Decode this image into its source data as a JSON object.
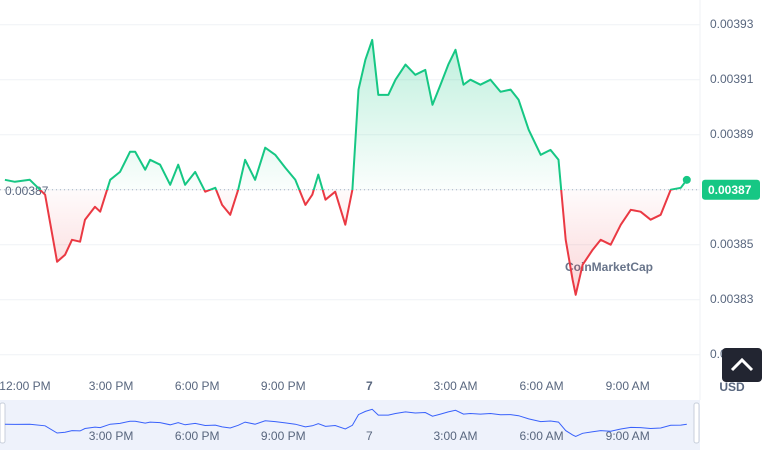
{
  "chart_data": {
    "type": "line",
    "x": [
      -0.7,
      -0.35,
      0.17,
      0.7,
      1.12,
      1.4,
      1.64,
      1.92,
      2.09,
      2.44,
      2.62,
      2.97,
      3.31,
      3.66,
      3.84,
      4.19,
      4.36,
      4.71,
      5.06,
      5.34,
      5.58,
      5.93,
      6.28,
      6.63,
      6.87,
      7.15,
      7.43,
      7.67,
      8.02,
      8.37,
      8.72,
      9.07,
      9.42,
      9.77,
      10.01,
      10.22,
      10.47,
      10.81,
      11.16,
      11.41,
      11.62,
      11.86,
      12.1,
      12.31,
      12.66,
      12.91,
      13.26,
      13.6,
      13.95,
      14.2,
      14.48,
      14.75,
      15.0,
      15.28,
      15.52,
      15.87,
      16.22,
      16.57,
      16.92,
      17.2,
      17.55,
      17.97,
      18.31,
      18.59,
      18.84,
      19.08,
      19.19,
      19.43,
      19.78,
      20.06,
      20.41,
      20.76,
      21.11,
      21.45,
      21.8,
      22.15,
      22.5,
      22.85,
      23.06
    ],
    "values": [
      0.0038736,
      0.0038729,
      0.0038736,
      0.0038682,
      0.0038438,
      0.0038464,
      0.0038518,
      0.0038511,
      0.0038591,
      0.0038638,
      0.003862,
      0.0038736,
      0.0038765,
      0.0038838,
      0.0038838,
      0.0038773,
      0.0038809,
      0.0038791,
      0.0038718,
      0.0038791,
      0.0038718,
      0.0038765,
      0.0038693,
      0.0038707,
      0.0038645,
      0.0038609,
      0.00387,
      0.0038809,
      0.0038736,
      0.0038853,
      0.0038827,
      0.003878,
      0.0038736,
      0.0038645,
      0.0038682,
      0.0038755,
      0.0038664,
      0.0038693,
      0.0038573,
      0.00387,
      0.0039064,
      0.0039173,
      0.0039245,
      0.0039045,
      0.0039045,
      0.00391,
      0.0039155,
      0.0039118,
      0.0039136,
      0.0039009,
      0.0039082,
      0.0039155,
      0.0039209,
      0.0039082,
      0.00391,
      0.0039082,
      0.00391,
      0.0039056,
      0.0039064,
      0.0039027,
      0.0038918,
      0.0038827,
      0.0038845,
      0.0038809,
      0.0038518,
      0.0038373,
      0.0038318,
      0.0038427,
      0.0038482,
      0.0038518,
      0.00385,
      0.0038573,
      0.0038627,
      0.003862,
      0.0038591,
      0.0038609,
      0.00387,
      0.0038707,
      0.0038736
    ],
    "baseline": 0.00387,
    "current_price": 0.00387,
    "up_color": "#16c784",
    "down_color": "#ea3943",
    "xlim": [
      -0.87,
      23.52
    ],
    "xticks": [
      {
        "value": 0,
        "label": "12:00 PM"
      },
      {
        "value": 3,
        "label": "3:00 PM"
      },
      {
        "value": 6,
        "label": "6:00 PM"
      },
      {
        "value": 9,
        "label": "9:00 PM"
      },
      {
        "value": 12,
        "label": "7"
      },
      {
        "value": 15,
        "label": "3:00 AM"
      },
      {
        "value": 18,
        "label": "6:00 AM"
      },
      {
        "value": 21,
        "label": "9:00 AM"
      }
    ],
    "ylim": [
      0.003803,
      0.003939
    ],
    "yticks": [
      0.00381,
      0.00383,
      0.00385,
      0.00387,
      0.00389,
      0.00391,
      0.00393
    ],
    "currency": "USD",
    "watermark": "CoinMarketCap",
    "grid": true
  }
}
